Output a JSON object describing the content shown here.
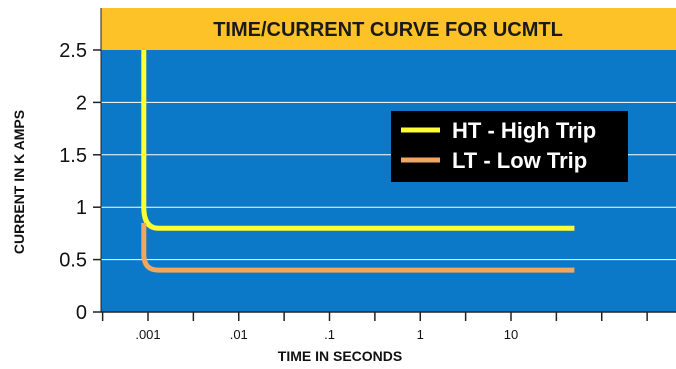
{
  "chart_data": {
    "type": "line",
    "title": "TIME/CURRENT CURVE FOR UCMTL",
    "xlabel": "TIME IN SECONDS",
    "ylabel": "CURRENT IN K AMPS",
    "x_scale": "log",
    "xlim": [
      0.0001,
      1000
    ],
    "ylim": [
      0,
      2.5
    ],
    "x_tick_labels": [
      ".001",
      ".01",
      ".1",
      "1",
      "10"
    ],
    "x_tick_values": [
      0.001,
      0.01,
      0.1,
      1,
      10
    ],
    "y_tick_labels": [
      "0",
      "0.5",
      "1",
      "1.5",
      "2",
      "2.5"
    ],
    "y_tick_values": [
      0,
      0.5,
      1,
      1.5,
      2,
      2.5
    ],
    "grid": true,
    "legend_position": "right",
    "series": [
      {
        "name": "HT - High Trip",
        "color": "#ffff33",
        "points": [
          [
            0.0009,
            2.5
          ],
          [
            0.0009,
            1.0
          ],
          [
            0.00095,
            0.88
          ],
          [
            0.0011,
            0.82
          ],
          [
            0.0013,
            0.8
          ],
          [
            50,
            0.8
          ]
        ]
      },
      {
        "name": "LT - Low Trip",
        "color": "#f0a860",
        "points": [
          [
            0.0009,
            0.85
          ],
          [
            0.0009,
            0.55
          ],
          [
            0.00095,
            0.46
          ],
          [
            0.0011,
            0.42
          ],
          [
            0.0013,
            0.4
          ],
          [
            50,
            0.4
          ]
        ]
      }
    ],
    "colors": {
      "plot_background": "#0c78c8",
      "title_band": "#fcc227",
      "grid": "#ffffff",
      "legend_background": "#000000"
    }
  }
}
